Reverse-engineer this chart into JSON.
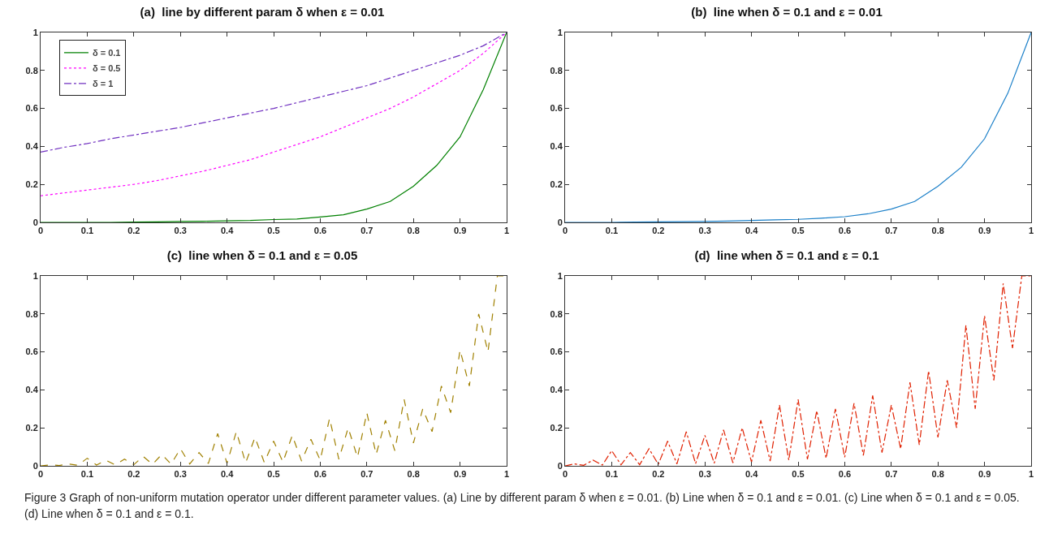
{
  "chart_data": [
    {
      "type": "line",
      "title": "(a)  line by different param δ when ε = 0.01",
      "xlim": [
        0,
        1
      ],
      "ylim": [
        0,
        1
      ],
      "xticks": [
        0,
        0.1,
        0.2,
        0.3,
        0.4,
        0.5,
        0.6,
        0.7,
        0.8,
        0.9,
        1
      ],
      "yticks": [
        0,
        0.2,
        0.4,
        0.6,
        0.8,
        1
      ],
      "grid": false,
      "legend": "top left",
      "x": [
        0,
        0.05,
        0.1,
        0.15,
        0.2,
        0.25,
        0.3,
        0.35,
        0.4,
        0.45,
        0.5,
        0.55,
        0.6,
        0.65,
        0.7,
        0.75,
        0.8,
        0.85,
        0.9,
        0.95,
        1
      ],
      "series": [
        {
          "name": "δ = 0.1",
          "color": "#008000",
          "line_style": "solid",
          "values": [
            0,
            0,
            0,
            0,
            0.002,
            0.003,
            0.005,
            0.006,
            0.008,
            0.01,
            0.015,
            0.018,
            0.028,
            0.04,
            0.07,
            0.11,
            0.19,
            0.3,
            0.45,
            0.7,
            1
          ]
        },
        {
          "name": "δ = 0.5",
          "color": "#ff00ff",
          "line_style": "dotted",
          "values": [
            0.14,
            0.155,
            0.17,
            0.185,
            0.2,
            0.22,
            0.245,
            0.27,
            0.3,
            0.33,
            0.37,
            0.41,
            0.45,
            0.5,
            0.55,
            0.6,
            0.66,
            0.73,
            0.8,
            0.89,
            1
          ]
        },
        {
          "name": "δ = 1",
          "color": "#7030c0",
          "line_style": "dashdot",
          "values": [
            0.37,
            0.395,
            0.415,
            0.44,
            0.46,
            0.48,
            0.5,
            0.525,
            0.55,
            0.575,
            0.6,
            0.63,
            0.66,
            0.69,
            0.72,
            0.76,
            0.8,
            0.84,
            0.88,
            0.93,
            1
          ]
        }
      ]
    },
    {
      "type": "line",
      "title": "(b)  line when δ = 0.1 and ε = 0.01",
      "xlim": [
        0,
        1
      ],
      "ylim": [
        0,
        1
      ],
      "xticks": [
        0,
        0.1,
        0.2,
        0.3,
        0.4,
        0.5,
        0.6,
        0.7,
        0.8,
        0.9,
        1
      ],
      "yticks": [
        0,
        0.2,
        0.4,
        0.6,
        0.8,
        1
      ],
      "grid": false,
      "x": [
        0,
        0.05,
        0.1,
        0.15,
        0.2,
        0.25,
        0.3,
        0.35,
        0.4,
        0.45,
        0.5,
        0.55,
        0.6,
        0.65,
        0.7,
        0.75,
        0.8,
        0.85,
        0.9,
        0.95,
        1
      ],
      "series": [
        {
          "color": "#1a7fc8",
          "line_style": "solid",
          "values": [
            0,
            0,
            0,
            0.002,
            0.003,
            0.004,
            0.005,
            0.007,
            0.01,
            0.013,
            0.016,
            0.022,
            0.03,
            0.045,
            0.07,
            0.11,
            0.19,
            0.29,
            0.44,
            0.68,
            1
          ]
        }
      ]
    },
    {
      "type": "line",
      "title": "(c)  line when δ = 0.1 and ε = 0.05",
      "xlim": [
        0,
        1
      ],
      "ylim": [
        0,
        1
      ],
      "xticks": [
        0,
        0.1,
        0.2,
        0.3,
        0.4,
        0.5,
        0.6,
        0.7,
        0.8,
        0.9,
        1
      ],
      "yticks": [
        0,
        0.2,
        0.4,
        0.6,
        0.8,
        1
      ],
      "grid": false,
      "x": [
        0,
        0.02,
        0.04,
        0.06,
        0.08,
        0.1,
        0.12,
        0.14,
        0.16,
        0.18,
        0.2,
        0.22,
        0.24,
        0.26,
        0.28,
        0.3,
        0.32,
        0.34,
        0.36,
        0.38,
        0.4,
        0.42,
        0.44,
        0.46,
        0.48,
        0.5,
        0.52,
        0.54,
        0.56,
        0.58,
        0.6,
        0.62,
        0.64,
        0.66,
        0.68,
        0.7,
        0.72,
        0.74,
        0.76,
        0.78,
        0.8,
        0.82,
        0.84,
        0.86,
        0.88,
        0.9,
        0.92,
        0.94,
        0.96,
        0.98,
        1
      ],
      "series": [
        {
          "color": "#a08000",
          "line_style": "dashed",
          "values": [
            0,
            0.005,
            0.002,
            0.01,
            0.003,
            0.04,
            0.004,
            0.03,
            0.005,
            0.035,
            0.006,
            0.05,
            0.008,
            0.06,
            0.009,
            0.09,
            0.01,
            0.07,
            0.012,
            0.17,
            0.014,
            0.18,
            0.016,
            0.15,
            0.018,
            0.13,
            0.02,
            0.16,
            0.025,
            0.14,
            0.03,
            0.25,
            0.035,
            0.2,
            0.045,
            0.28,
            0.06,
            0.24,
            0.08,
            0.35,
            0.12,
            0.3,
            0.18,
            0.42,
            0.28,
            0.61,
            0.42,
            0.8,
            0.6,
            1,
            1
          ]
        }
      ]
    },
    {
      "type": "line",
      "title": "(d)  line when δ = 0.1 and ε = 0.1",
      "xlim": [
        0,
        1
      ],
      "ylim": [
        0,
        1
      ],
      "xticks": [
        0,
        0.1,
        0.2,
        0.3,
        0.4,
        0.5,
        0.6,
        0.7,
        0.8,
        0.9,
        1
      ],
      "yticks": [
        0,
        0.2,
        0.4,
        0.6,
        0.8,
        1
      ],
      "grid": false,
      "x": [
        0,
        0.02,
        0.04,
        0.06,
        0.08,
        0.1,
        0.12,
        0.14,
        0.16,
        0.18,
        0.2,
        0.22,
        0.24,
        0.26,
        0.28,
        0.3,
        0.32,
        0.34,
        0.36,
        0.38,
        0.4,
        0.42,
        0.44,
        0.46,
        0.48,
        0.5,
        0.52,
        0.54,
        0.56,
        0.58,
        0.6,
        0.62,
        0.64,
        0.66,
        0.68,
        0.7,
        0.72,
        0.74,
        0.76,
        0.78,
        0.8,
        0.82,
        0.84,
        0.86,
        0.88,
        0.9,
        0.92,
        0.94,
        0.96,
        0.98,
        1
      ],
      "series": [
        {
          "color": "#e02000",
          "line_style": "dashdot",
          "values": [
            0,
            0.01,
            0.003,
            0.03,
            0.004,
            0.08,
            0.005,
            0.07,
            0.006,
            0.09,
            0.008,
            0.13,
            0.01,
            0.18,
            0.012,
            0.16,
            0.014,
            0.19,
            0.016,
            0.2,
            0.02,
            0.24,
            0.025,
            0.32,
            0.03,
            0.35,
            0.035,
            0.29,
            0.04,
            0.3,
            0.045,
            0.33,
            0.055,
            0.37,
            0.07,
            0.32,
            0.09,
            0.44,
            0.11,
            0.5,
            0.15,
            0.45,
            0.2,
            0.74,
            0.3,
            0.79,
            0.45,
            0.96,
            0.62,
            1,
            1
          ]
        }
      ],
      "annotations": [
        "Figure 3 Graph of non-uniform mutation operator under different parameter values. (a) Line by different param δ when ε = 0.01. (b) Line when δ = 0.1 and ε = 0.01. (c) Line when δ = 0.1 and ε = 0.05. (d) Line when δ = 0.1 and ε = 0.1."
      ]
    }
  ]
}
